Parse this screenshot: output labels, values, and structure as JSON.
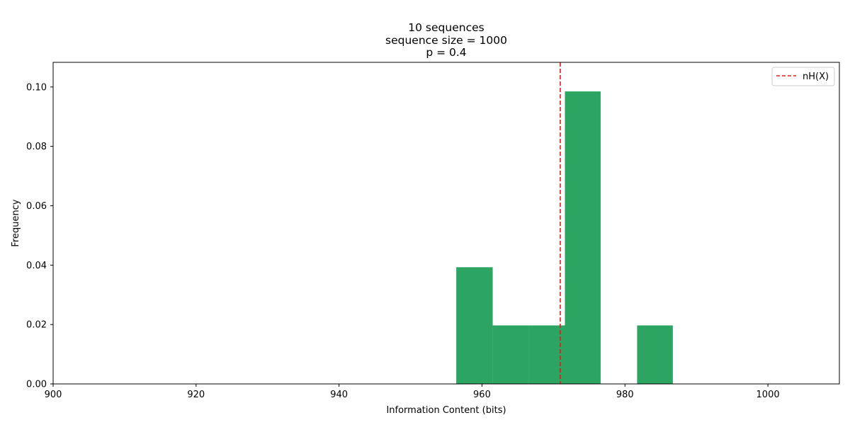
{
  "chart_data": {
    "type": "bar",
    "title_lines": [
      "10 sequences",
      "sequence size = 1000",
      "p = 0.4"
    ],
    "xlabel": "Information Content (bits)",
    "ylabel": "Frequency",
    "xlim": [
      900,
      1010
    ],
    "ylim": [
      0,
      0.1083
    ],
    "xticks": [
      900,
      920,
      940,
      960,
      980,
      1000
    ],
    "xtick_labels": [
      "900",
      "920",
      "940",
      "960",
      "980",
      "1000"
    ],
    "yticks": [
      0,
      0.02,
      0.04,
      0.06,
      0.08,
      0.1
    ],
    "ytick_labels": [
      "0.00",
      "0.02",
      "0.04",
      "0.06",
      "0.08",
      "0.10"
    ],
    "bins": [
      {
        "x0": 956.4,
        "x1": 961.5,
        "value": 0.0393
      },
      {
        "x0": 961.5,
        "x1": 966.5,
        "value": 0.0197
      },
      {
        "x0": 966.5,
        "x1": 971.6,
        "value": 0.0197
      },
      {
        "x0": 971.6,
        "x1": 976.6,
        "value": 0.0985
      },
      {
        "x0": 976.6,
        "x1": 981.7,
        "value": 0
      },
      {
        "x0": 981.7,
        "x1": 986.7,
        "value": 0.0197
      }
    ],
    "bar_color": "#2ca462",
    "vline": {
      "x": 970.95,
      "color": "#e31a1c",
      "style": "dashed",
      "label": "nH(X)"
    },
    "legend": {
      "position": "top-right",
      "entries": [
        "nH(X)"
      ]
    },
    "grid": false
  }
}
